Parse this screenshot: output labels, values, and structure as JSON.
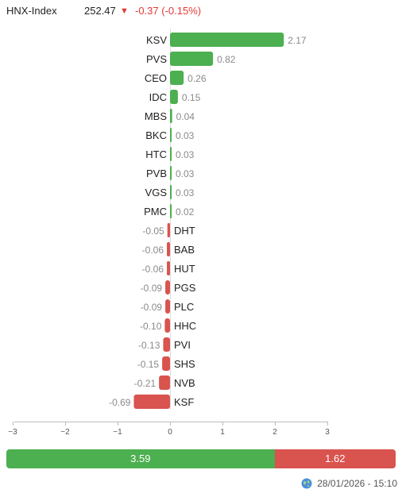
{
  "header": {
    "index_name": "HNX-Index",
    "index_value": "252.47",
    "arrow": "▼",
    "change": "-0.37 (-0.15%)"
  },
  "chart_data": {
    "type": "bar",
    "orientation": "horizontal",
    "categories": [
      "KSV",
      "PVS",
      "CEO",
      "IDC",
      "MBS",
      "BKC",
      "HTC",
      "PVB",
      "VGS",
      "PMC",
      "DHT",
      "BAB",
      "HUT",
      "PGS",
      "PLC",
      "HHC",
      "PVI",
      "SHS",
      "NVB",
      "KSF"
    ],
    "values": [
      2.17,
      0.82,
      0.26,
      0.15,
      0.04,
      0.03,
      0.03,
      0.03,
      0.03,
      0.02,
      -0.05,
      -0.06,
      -0.06,
      -0.09,
      -0.09,
      -0.1,
      -0.13,
      -0.15,
      -0.21,
      -0.69
    ],
    "value_labels": [
      "2.17",
      "0.82",
      "0.26",
      "0.15",
      "0.04",
      "0.03",
      "0.03",
      "0.03",
      "0.03",
      "0.02",
      "-0.05",
      "-0.06",
      "-0.06",
      "-0.09",
      "-0.09",
      "-0.10",
      "-0.13",
      "-0.15",
      "-0.21",
      "-0.69"
    ],
    "xlim": [
      -3,
      3
    ],
    "ticks": [
      -3,
      -2,
      -1,
      0,
      1,
      2,
      3
    ],
    "tick_labels": [
      "−3",
      "−2",
      "−1",
      "0",
      "1",
      "2",
      "3"
    ],
    "positive_color": "#4caf50",
    "negative_color": "#d9534f"
  },
  "breadth": {
    "advance": 3.59,
    "decline": 1.62,
    "advance_label": "3.59",
    "decline_label": "1.62",
    "advance_color": "#4caf50",
    "decline_color": "#d9534f"
  },
  "footer": {
    "icon": "globe-icon",
    "timestamp": "28/01/2026 - 15:10"
  }
}
